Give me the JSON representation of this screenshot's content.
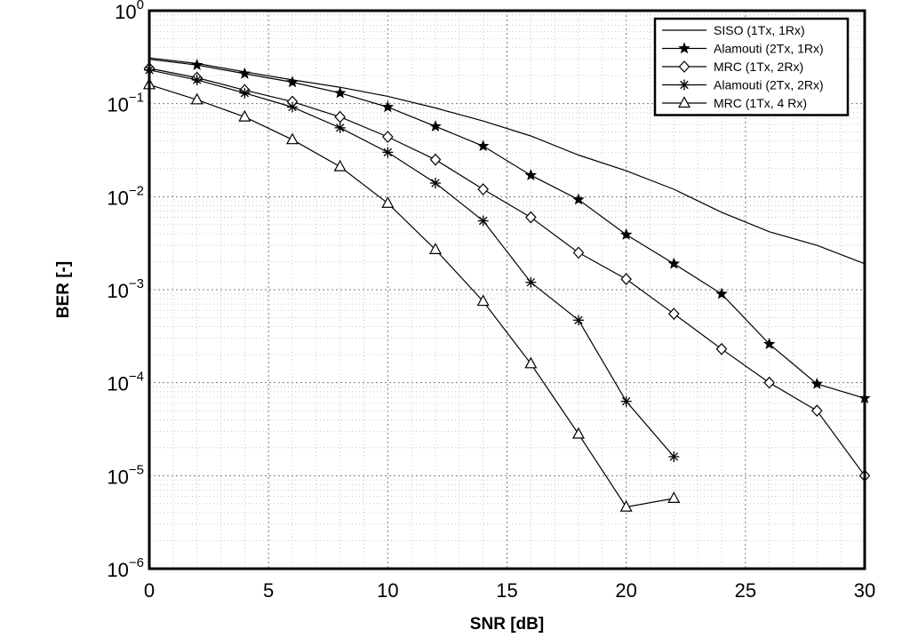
{
  "chart_data": {
    "type": "line",
    "title": "",
    "xlabel": "SNR [dB]",
    "ylabel": "BER [-]",
    "xlim": [
      0,
      30
    ],
    "ylim": [
      1e-06,
      1
    ],
    "yscale": "log",
    "grid": true,
    "legend_position": "top-right",
    "x_ticks": [
      0,
      5,
      10,
      15,
      20,
      25,
      30
    ],
    "y_tick_exponents": [
      0,
      -1,
      -2,
      -3,
      -4,
      -5,
      -6
    ],
    "series": [
      {
        "name": "SISO (1Tx, 1Rx)",
        "marker": "none",
        "x": [
          0,
          2,
          4,
          6,
          8,
          10,
          12,
          14,
          16,
          18,
          20,
          22,
          24,
          26,
          28,
          30
        ],
        "y": [
          0.31,
          0.27,
          0.22,
          0.18,
          0.15,
          0.12,
          0.09,
          0.065,
          0.045,
          0.028,
          0.019,
          0.012,
          0.0068,
          0.0042,
          0.003,
          0.0019
        ]
      },
      {
        "name": "Alamouti (2Tx, 1Rx)",
        "marker": "star",
        "x": [
          0,
          2,
          4,
          6,
          8,
          10,
          12,
          14,
          16,
          18,
          20,
          22,
          24,
          26,
          28,
          30
        ],
        "y": [
          0.3,
          0.26,
          0.21,
          0.17,
          0.13,
          0.092,
          0.057,
          0.035,
          0.017,
          0.0093,
          0.0039,
          0.0019,
          0.0009,
          0.00026,
          9.7e-05,
          6.8e-05
        ]
      },
      {
        "name": "MRC (1Tx, 2Rx)",
        "marker": "diamond",
        "x": [
          0,
          2,
          4,
          6,
          8,
          10,
          12,
          14,
          16,
          18,
          20,
          22,
          24,
          26,
          28,
          30
        ],
        "y": [
          0.24,
          0.19,
          0.14,
          0.105,
          0.072,
          0.044,
          0.025,
          0.012,
          0.006,
          0.0025,
          0.0013,
          0.00055,
          0.00023,
          0.0001,
          5e-05,
          1e-05
        ]
      },
      {
        "name": "Alamouti (2Tx, 2Rx)",
        "marker": "asterisk",
        "x": [
          0,
          2,
          4,
          6,
          8,
          10,
          12,
          14,
          16,
          18,
          20,
          22
        ],
        "y": [
          0.23,
          0.18,
          0.13,
          0.092,
          0.055,
          0.03,
          0.014,
          0.0055,
          0.0012,
          0.00047,
          6.3e-05,
          1.6e-05
        ]
      },
      {
        "name": "MRC (1Tx, 4 Rx)",
        "marker": "triangle",
        "x": [
          0,
          2,
          4,
          6,
          8,
          10,
          12,
          14,
          16,
          18,
          20,
          22
        ],
        "y": [
          0.16,
          0.11,
          0.072,
          0.041,
          0.021,
          0.0085,
          0.0027,
          0.00075,
          0.00016,
          2.8e-05,
          4.6e-06,
          5.7e-06
        ]
      }
    ]
  }
}
